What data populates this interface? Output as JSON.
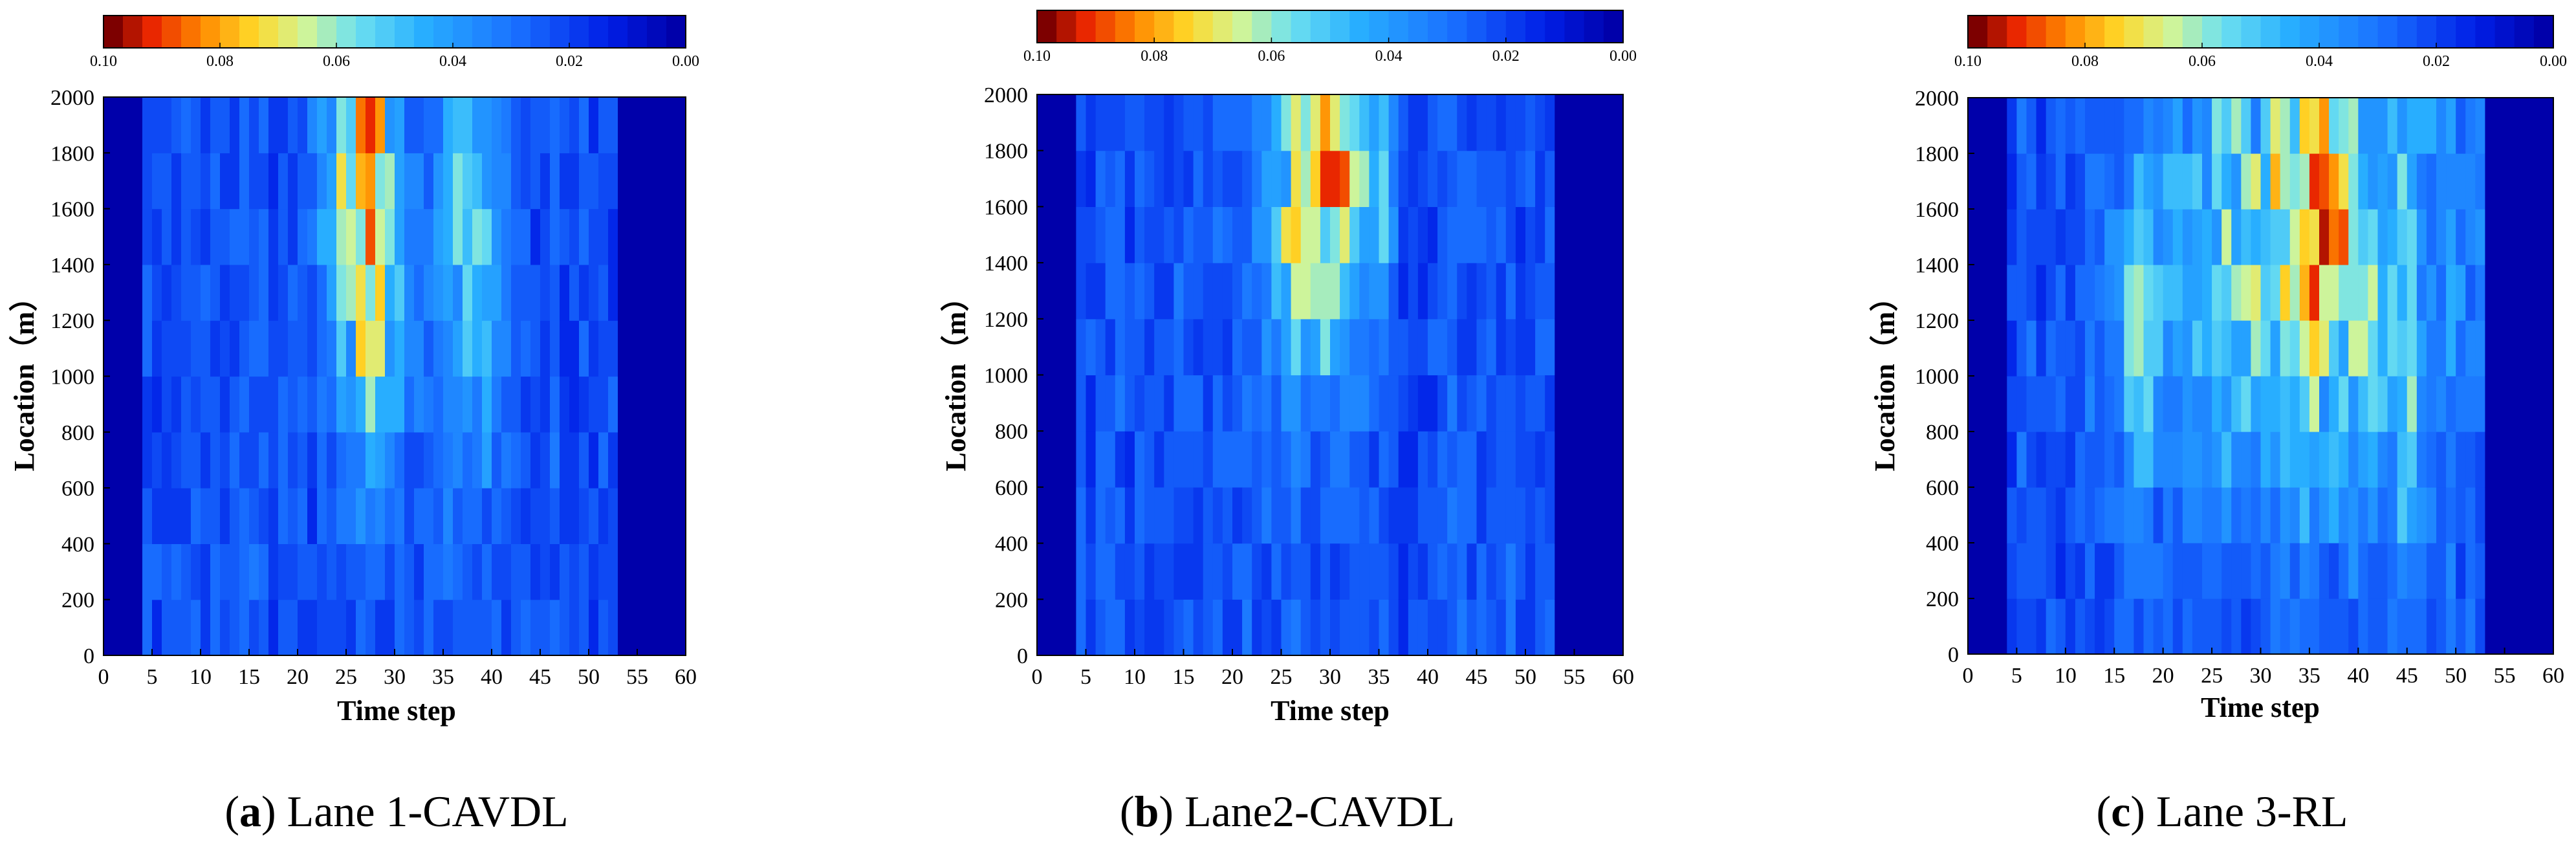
{
  "figure": {
    "description_free": true
  },
  "chart_data": [
    {
      "type": "heatmap",
      "caption_letter": "a",
      "caption_text": "Lane 1-CAVDL",
      "xlabel": "Time step",
      "ylabel": "Location（m）",
      "xlim": [
        0,
        60
      ],
      "ylim": [
        0,
        2000
      ],
      "xticks": [
        "0",
        "5",
        "10",
        "15",
        "20",
        "25",
        "30",
        "35",
        "40",
        "45",
        "50",
        "55",
        "60"
      ],
      "yticks": [
        "0",
        "200",
        "400",
        "600",
        "800",
        "1000",
        "1200",
        "1400",
        "1600",
        "1800",
        "2000"
      ],
      "colorbar": {
        "min": 0.0,
        "max": 0.1,
        "ticks": [
          "0.10",
          "0.08",
          "0.06",
          "0.04",
          "0.02",
          "0.00"
        ]
      },
      "active_time_range": [
        4,
        53
      ],
      "location_bin": 200,
      "time_bin": 1,
      "seed": 11,
      "hot_spots": [
        {
          "t": 27.5,
          "y": 1300,
          "st": 2.2,
          "sy": 450,
          "a": 0.045
        },
        {
          "t": 37.5,
          "y": 1400,
          "st": 2.5,
          "sy": 500,
          "a": 0.032
        },
        {
          "t": 24.0,
          "y": 1700,
          "st": 1.6,
          "sy": 300,
          "a": 0.028
        },
        {
          "t": 28.0,
          "y": 1850,
          "st": 1.2,
          "sy": 200,
          "a": 0.04
        }
      ]
    },
    {
      "type": "heatmap",
      "caption_letter": "b",
      "caption_text": "Lane2-CAVDL",
      "xlabel": "Time step",
      "ylabel": "Location（m）",
      "xlim": [
        0,
        60
      ],
      "ylim": [
        0,
        2000
      ],
      "xticks": [
        "0",
        "5",
        "10",
        "15",
        "20",
        "25",
        "30",
        "35",
        "40",
        "45",
        "50",
        "55",
        "60"
      ],
      "yticks": [
        "0",
        "200",
        "400",
        "600",
        "800",
        "1000",
        "1200",
        "1400",
        "1600",
        "1800",
        "2000"
      ],
      "colorbar": {
        "min": 0.0,
        "max": 0.1,
        "ticks": [
          "0.10",
          "0.08",
          "0.06",
          "0.04",
          "0.02",
          "0.00"
        ]
      },
      "active_time_range": [
        4,
        53
      ],
      "location_bin": 200,
      "time_bin": 1,
      "seed": 23,
      "hot_spots": [
        {
          "t": 28.5,
          "y": 1550,
          "st": 3.5,
          "sy": 420,
          "a": 0.042
        },
        {
          "t": 30.5,
          "y": 1900,
          "st": 2.0,
          "sy": 250,
          "a": 0.03
        },
        {
          "t": 35.5,
          "y": 1700,
          "st": 1.0,
          "sy": 300,
          "a": 0.02
        }
      ]
    },
    {
      "type": "heatmap",
      "caption_letter": "c",
      "caption_text": "Lane 3-RL",
      "xlabel": "Time step",
      "ylabel": "Location（m）",
      "xlim": [
        0,
        60
      ],
      "ylim": [
        0,
        2000
      ],
      "xticks": [
        "0",
        "5",
        "10",
        "15",
        "20",
        "25",
        "30",
        "35",
        "40",
        "45",
        "50",
        "55",
        "60"
      ],
      "yticks": [
        "0",
        "200",
        "400",
        "600",
        "800",
        "1000",
        "1200",
        "1400",
        "1600",
        "1800",
        "2000"
      ],
      "colorbar": {
        "min": 0.0,
        "max": 0.1,
        "ticks": [
          "0.10",
          "0.08",
          "0.06",
          "0.04",
          "0.02",
          "0.00"
        ]
      },
      "active_time_range": [
        4,
        53
      ],
      "location_bin": 200,
      "time_bin": 1,
      "seed": 37,
      "hot_spots": [
        {
          "t": 34.0,
          "y": 1450,
          "st": 10.0,
          "sy": 650,
          "a": 0.04
        },
        {
          "t": 36.5,
          "y": 1600,
          "st": 1.5,
          "sy": 300,
          "a": 0.028
        },
        {
          "t": 17.5,
          "y": 1100,
          "st": 1.5,
          "sy": 400,
          "a": 0.024
        },
        {
          "t": 45.0,
          "y": 800,
          "st": 0.8,
          "sy": 350,
          "a": 0.02
        }
      ]
    }
  ]
}
